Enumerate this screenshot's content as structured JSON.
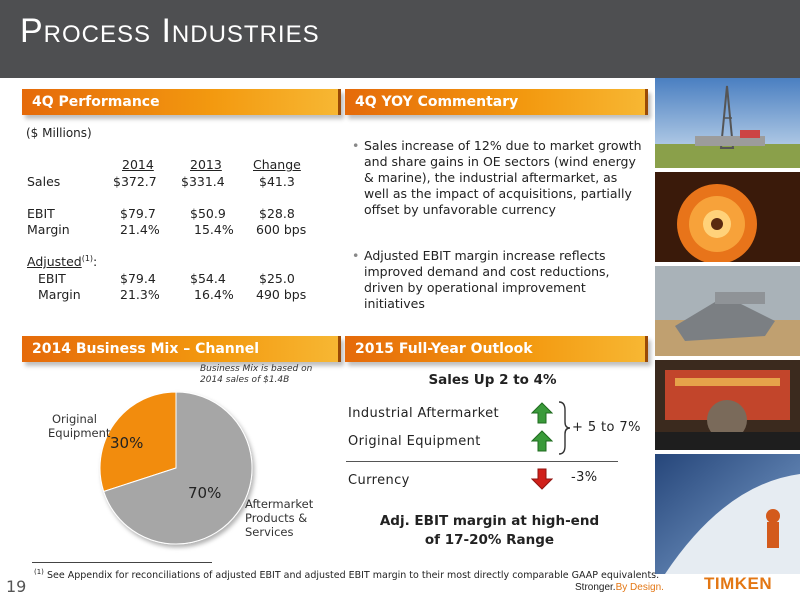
{
  "title": "Process Industries",
  "performance": {
    "header": "4Q Performance",
    "units": "($ Millions)",
    "col_2014": "2014",
    "col_2013": "2013",
    "col_change": "Change",
    "rows": [
      {
        "label": "Sales",
        "v2014": "$372.7",
        "v2013": "$331.4",
        "change": "$41.3"
      },
      {
        "label": "EBIT",
        "v2014": "$79.7",
        "v2013": "$50.9",
        "change": "$28.8"
      },
      {
        "label": "Margin",
        "v2014": "21.4%",
        "v2013": "15.4%",
        "change": "600 bps"
      }
    ],
    "adjusted_label": "Adjusted",
    "adjusted_sup": "(1)",
    "adjusted_colon": ":",
    "adjusted_rows": [
      {
        "label": "EBIT",
        "v2014": "$79.4",
        "v2013": "$54.4",
        "change": "$25.0"
      },
      {
        "label": "Margin",
        "v2014": "21.3%",
        "v2013": "16.4%",
        "change": "490 bps"
      }
    ]
  },
  "commentary": {
    "header": "4Q YOY Commentary",
    "bullets": [
      "Sales increase of 12% due to market growth and share gains in OE sectors (wind energy & marine), the industrial aftermarket, as well as the impact of acquisitions, partially offset by unfavorable currency",
      "Adjusted EBIT margin increase reflects improved demand and cost reductions, driven by operational improvement initiatives"
    ]
  },
  "mix": {
    "header": "2014 Business Mix – Channel",
    "note_line1": "Business Mix is based on",
    "note_line2": "2014 sales of $1.4B",
    "label_oe_1": "Original",
    "label_oe_2": "Equipment",
    "label_am_1": "Aftermarket",
    "label_am_2": "Products &",
    "label_am_3": "Services",
    "pct_oe": "30%",
    "pct_am": "70%"
  },
  "chart_data": {
    "type": "pie",
    "categories": [
      "Original Equipment",
      "Aftermarket Products & Services"
    ],
    "values": [
      30,
      70
    ],
    "colors": [
      "#f28c0f",
      "#a6a6a6"
    ]
  },
  "outlook": {
    "header": "2015 Full-Year Outlook",
    "sales": "Sales Up 2 to 4%",
    "industrial_aftermarket": "Industrial Aftermarket",
    "original_equipment": "Original Equipment",
    "range": "+ 5 to 7%",
    "currency": "Currency",
    "currency_value": "-3%",
    "adj_line1": "Adj. EBIT margin at high-end",
    "adj_line2": "of 17-20% Range"
  },
  "footer": {
    "footnote_sup": "(1)",
    "footnote": "See Appendix for reconciliations of adjusted EBIT and adjusted EBIT margin to their most directly comparable GAAP equivalents.",
    "page": "19",
    "tagline_a": "Stronger.",
    "tagline_b": "By Design.",
    "logo": "TIMKEN"
  },
  "colors": {
    "accent": "#e37714",
    "title_bar": "#4e4f51",
    "up_arrow": "#3a9a3a",
    "down_arrow": "#d0201a"
  }
}
